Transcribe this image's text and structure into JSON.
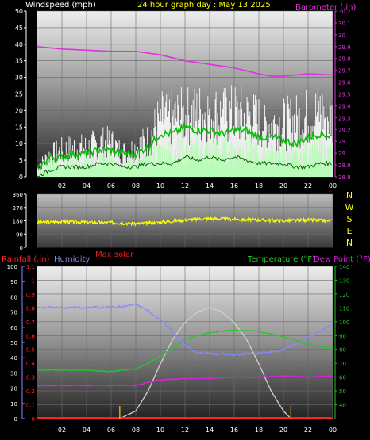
{
  "header": {
    "wind_title": "Windspeed (mph)",
    "title": "24 hour graph day : May 13 2025",
    "baro_title": "Barometer (.in)"
  },
  "mid_header": {
    "rain_title": "Rainfall (.in)",
    "humidity_title": "Humidity",
    "max_solar": "Max solar",
    "temp_title": "Temperature (°F)",
    "dew_title": "Dew Point (°F)"
  },
  "colors": {
    "wind_gust": "#ffffff",
    "wind_avg": "#b0ffb0",
    "wind_line": "#00c000",
    "barometer": "#dd33dd",
    "direction": "#ffff00",
    "humidity": "#8888ff",
    "temperature": "#22cc22",
    "dew_point": "#dd22dd",
    "solar": "#d0d0d0",
    "rain": "#ff2222",
    "title": "#ffff00"
  },
  "chart_data": [
    {
      "type": "line",
      "name": "wind-barometer",
      "xlabel": "",
      "x_ticks": [
        "02",
        "04",
        "06",
        "08",
        "10",
        "12",
        "14",
        "16",
        "18",
        "20",
        "22",
        "00"
      ],
      "xlim": [
        0,
        24
      ],
      "y_left": {
        "label": "Windspeed (mph)",
        "lim": [
          0,
          50
        ],
        "ticks": [
          0,
          5,
          10,
          15,
          20,
          25,
          30,
          35,
          40,
          45,
          50
        ]
      },
      "y_right": {
        "label": "Barometer (.in)",
        "lim": [
          28.8,
          30.2
        ],
        "ticks": [
          "28.8",
          "28.9",
          "29",
          "29.1",
          "29.2",
          "29.3",
          "29.4",
          "29.5",
          "29.6",
          "29.7",
          "29.8",
          "29.9",
          "30",
          "30.1",
          "30.2"
        ]
      },
      "series": [
        {
          "name": "Barometer",
          "axis": "right",
          "x": [
            0,
            2,
            4,
            6,
            8,
            10,
            12,
            14,
            16,
            18,
            19,
            20,
            22,
            24
          ],
          "y": [
            29.9,
            29.88,
            29.87,
            29.86,
            29.86,
            29.83,
            29.78,
            29.75,
            29.72,
            29.67,
            29.65,
            29.65,
            29.67,
            29.66
          ]
        },
        {
          "name": "Wind gust",
          "axis": "left",
          "x": [
            0,
            1,
            2,
            3,
            4,
            5,
            6,
            7,
            8,
            9,
            10,
            11,
            12,
            13,
            14,
            15,
            16,
            17,
            18,
            19,
            20,
            21,
            22,
            23,
            24
          ],
          "y": [
            4,
            9,
            11,
            12,
            12,
            14,
            14,
            10,
            12,
            15,
            24,
            24,
            25,
            26,
            27,
            25,
            26,
            25,
            23,
            22,
            22,
            23,
            25,
            27,
            24
          ]
        },
        {
          "name": "Wind average",
          "axis": "left",
          "x": [
            0,
            1,
            2,
            3,
            4,
            5,
            6,
            7,
            8,
            9,
            10,
            11,
            12,
            13,
            14,
            15,
            16,
            17,
            18,
            19,
            20,
            21,
            22,
            23,
            24
          ],
          "y": [
            2,
            6,
            6,
            7,
            7,
            8,
            8,
            7,
            7,
            9,
            13,
            13,
            15,
            14,
            14,
            13,
            14,
            14,
            12,
            12,
            11,
            10,
            12,
            13,
            12
          ]
        },
        {
          "name": "Wind light",
          "axis": "left",
          "x": [
            0,
            1,
            2,
            3,
            4,
            5,
            6,
            7,
            8,
            9,
            10,
            11,
            12,
            13,
            14,
            15,
            16,
            17,
            18,
            19,
            20,
            21,
            22,
            23,
            24
          ],
          "y": [
            0,
            2,
            3,
            3,
            3,
            4,
            4,
            3,
            3,
            4,
            4,
            4,
            6,
            5,
            6,
            5,
            6,
            5,
            4,
            4,
            4,
            3,
            3,
            4,
            4
          ]
        }
      ]
    },
    {
      "type": "line",
      "name": "wind-direction",
      "xlim": [
        0,
        24
      ],
      "y_left": {
        "lim": [
          0,
          360
        ],
        "ticks": [
          0,
          90,
          180,
          270,
          360
        ]
      },
      "y_right_labels": [
        "N",
        "W",
        "S",
        "E",
        "N"
      ],
      "series": [
        {
          "name": "Direction",
          "x": [
            0,
            2,
            4,
            6,
            8,
            10,
            12,
            14,
            16,
            18,
            20,
            22,
            24
          ],
          "y": [
            170,
            175,
            170,
            168,
            160,
            170,
            185,
            195,
            190,
            185,
            180,
            185,
            180
          ]
        }
      ]
    },
    {
      "type": "line",
      "name": "temperature-humidity",
      "x_ticks": [
        "02",
        "04",
        "06",
        "08",
        "10",
        "12",
        "14",
        "16",
        "18",
        "20",
        "22",
        "00"
      ],
      "xlim": [
        0,
        24
      ],
      "y_humidity": {
        "lim": [
          0,
          100
        ],
        "ticks": [
          0,
          10,
          20,
          30,
          40,
          50,
          60,
          70,
          80,
          90,
          100
        ]
      },
      "y_rain": {
        "lim": [
          0,
          1.1
        ],
        "ticks": [
          "0",
          "0.1",
          "0.2",
          "0.3",
          "0.4",
          "0.5",
          "0.6",
          "0.7",
          "0.8",
          "0.9",
          "1",
          "1.1"
        ]
      },
      "y_temp": {
        "lim": [
          30,
          140
        ],
        "ticks": [
          40,
          50,
          60,
          70,
          80,
          90,
          100,
          110,
          120,
          130,
          140
        ]
      },
      "series": [
        {
          "name": "Humidity",
          "axis": "humidity",
          "x": [
            0,
            2,
            4,
            6,
            8,
            9,
            10,
            11,
            12,
            13,
            14,
            16,
            18,
            20,
            22,
            24
          ],
          "y": [
            73,
            73,
            73,
            73,
            75,
            71,
            65,
            57,
            48,
            43,
            43,
            42,
            43,
            45,
            53,
            62
          ]
        },
        {
          "name": "Temperature",
          "axis": "temp",
          "x": [
            0,
            2,
            4,
            6,
            8,
            9,
            10,
            11,
            12,
            13,
            14,
            16,
            18,
            20,
            22,
            24
          ],
          "y": [
            65,
            65,
            65,
            64,
            66,
            70,
            75,
            81,
            87,
            90,
            92,
            94,
            93,
            89,
            84,
            80
          ]
        },
        {
          "name": "Dew Point",
          "axis": "temp",
          "x": [
            0,
            2,
            4,
            6,
            8,
            9,
            10,
            12,
            14,
            16,
            18,
            20,
            22,
            24
          ],
          "y": [
            54,
            54,
            54,
            54,
            54,
            56,
            58,
            59,
            59,
            60,
            60,
            61,
            60,
            61
          ]
        },
        {
          "name": "Max solar",
          "axis": "humidity",
          "x": [
            6.7,
            8,
            9,
            10,
            11,
            12,
            13,
            14,
            15,
            16,
            17,
            18,
            19,
            20,
            20.6
          ],
          "y": [
            0,
            5,
            18,
            36,
            52,
            63,
            70,
            73,
            70,
            63,
            52,
            36,
            18,
            5,
            0
          ]
        }
      ],
      "markers": [
        6.7,
        20.6
      ]
    }
  ]
}
